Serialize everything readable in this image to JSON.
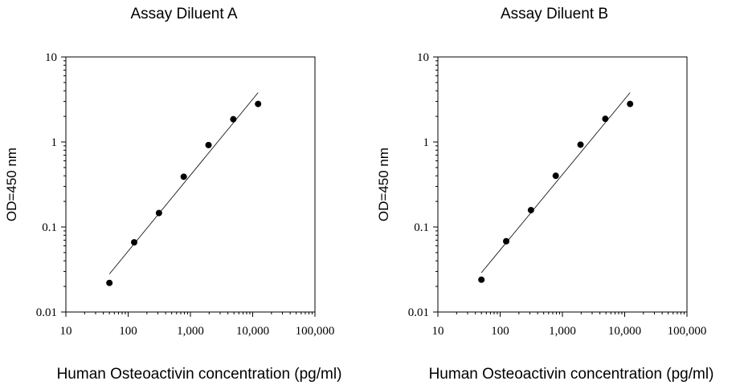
{
  "chart_data": [
    {
      "type": "scatter",
      "title": "Assay Diluent A",
      "xlabel": "Human Osteoactivin concentration (pg/ml)",
      "ylabel": "OD=450 nm",
      "xscale": "log",
      "yscale": "log",
      "xlim": [
        10,
        100000
      ],
      "ylim": [
        0.01,
        10
      ],
      "xticks": [
        "10",
        "100",
        "1,000",
        "10,000",
        "100,000"
      ],
      "yticks": [
        "0.01",
        "0.1",
        "1",
        "10"
      ],
      "series": [
        {
          "x": [
            50,
            125,
            312.5,
            781,
            1953,
            4883,
            12207
          ],
          "y": [
            0.022,
            0.066,
            0.146,
            0.39,
            0.92,
            1.85,
            2.8
          ]
        }
      ],
      "fit_line": {
        "x": [
          50,
          12207
        ],
        "y": [
          0.028,
          3.8
        ]
      },
      "grid": false
    },
    {
      "type": "scatter",
      "title": "Assay Diluent B",
      "xlabel": "Human Osteoactivin concentration (pg/ml)",
      "ylabel": "OD=450 nm",
      "xscale": "log",
      "yscale": "log",
      "xlim": [
        10,
        100000
      ],
      "ylim": [
        0.01,
        10
      ],
      "xticks": [
        "10",
        "100",
        "1,000",
        "10,000",
        "100,000"
      ],
      "yticks": [
        "0.01",
        "0.1",
        "1",
        "10"
      ],
      "series": [
        {
          "x": [
            50,
            125,
            312.5,
            781,
            1953,
            4883,
            12207
          ],
          "y": [
            0.024,
            0.068,
            0.158,
            0.4,
            0.93,
            1.87,
            2.8
          ]
        }
      ],
      "fit_line": {
        "x": [
          50,
          12207
        ],
        "y": [
          0.029,
          3.8
        ]
      },
      "grid": false
    }
  ]
}
